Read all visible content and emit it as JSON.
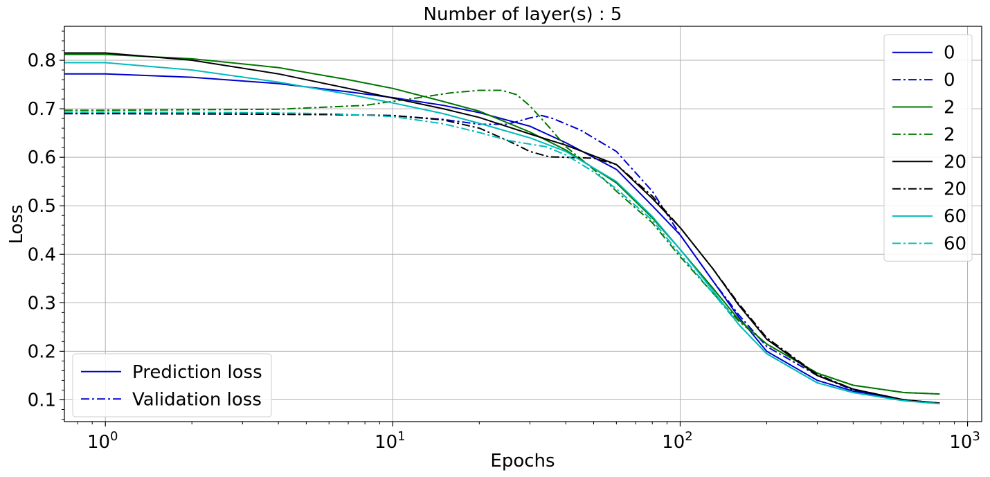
{
  "chart_data": {
    "type": "line",
    "title": "Number of layer(s) : 5",
    "xlabel": "Epochs",
    "ylabel": "Loss",
    "xscale": "log",
    "xlim": [
      0.72,
      1120
    ],
    "ylim": [
      0.055,
      0.87
    ],
    "grid": true,
    "x_ticks": [
      {
        "value": 1,
        "base": "10",
        "exp": "0"
      },
      {
        "value": 10,
        "base": "10",
        "exp": "1"
      },
      {
        "value": 100,
        "base": "10",
        "exp": "2"
      },
      {
        "value": 1000,
        "base": "10",
        "exp": "3"
      }
    ],
    "y_ticks": [
      {
        "value": 0.1,
        "label": "0.1"
      },
      {
        "value": 0.2,
        "label": "0.2"
      },
      {
        "value": 0.3,
        "label": "0.3"
      },
      {
        "value": 0.4,
        "label": "0.4"
      },
      {
        "value": 0.5,
        "label": "0.5"
      },
      {
        "value": 0.6,
        "label": "0.6"
      },
      {
        "value": 0.7,
        "label": "0.7"
      },
      {
        "value": 0.8,
        "label": "0.8"
      }
    ],
    "colors": {
      "0": "#0000cc",
      "2": "#007700",
      "20": "#000000",
      "60": "#00bbbb"
    },
    "series": [
      {
        "name": "0",
        "kind": "prediction",
        "color": "#0000cc",
        "points": [
          [
            0.72,
            0.772
          ],
          [
            1,
            0.772
          ],
          [
            2,
            0.765
          ],
          [
            4,
            0.752
          ],
          [
            7,
            0.735
          ],
          [
            10,
            0.723
          ],
          [
            15,
            0.707
          ],
          [
            20,
            0.692
          ],
          [
            30,
            0.664
          ],
          [
            40,
            0.63
          ],
          [
            60,
            0.575
          ],
          [
            80,
            0.5
          ],
          [
            100,
            0.44
          ],
          [
            130,
            0.345
          ],
          [
            160,
            0.27
          ],
          [
            200,
            0.2
          ],
          [
            300,
            0.14
          ],
          [
            400,
            0.118
          ],
          [
            600,
            0.1
          ],
          [
            800,
            0.093
          ]
        ]
      },
      {
        "name": "0",
        "kind": "validation",
        "color": "#0000cc",
        "points": [
          [
            0.72,
            0.69
          ],
          [
            1,
            0.69
          ],
          [
            3,
            0.689
          ],
          [
            6,
            0.688
          ],
          [
            10,
            0.686
          ],
          [
            15,
            0.678
          ],
          [
            20,
            0.668
          ],
          [
            25,
            0.668
          ],
          [
            30,
            0.681
          ],
          [
            33,
            0.686
          ],
          [
            36,
            0.68
          ],
          [
            45,
            0.656
          ],
          [
            60,
            0.612
          ],
          [
            80,
            0.53
          ],
          [
            100,
            0.44
          ],
          [
            130,
            0.345
          ],
          [
            160,
            0.275
          ],
          [
            200,
            0.21
          ],
          [
            300,
            0.15
          ],
          [
            400,
            0.12
          ],
          [
            600,
            0.1
          ],
          [
            800,
            0.093
          ]
        ]
      },
      {
        "name": "2",
        "kind": "prediction",
        "color": "#007700",
        "points": [
          [
            0.72,
            0.812
          ],
          [
            1,
            0.812
          ],
          [
            2,
            0.803
          ],
          [
            4,
            0.785
          ],
          [
            7,
            0.76
          ],
          [
            10,
            0.742
          ],
          [
            15,
            0.715
          ],
          [
            20,
            0.695
          ],
          [
            30,
            0.652
          ],
          [
            40,
            0.615
          ],
          [
            60,
            0.547
          ],
          [
            80,
            0.475
          ],
          [
            100,
            0.41
          ],
          [
            130,
            0.33
          ],
          [
            160,
            0.265
          ],
          [
            200,
            0.215
          ],
          [
            300,
            0.155
          ],
          [
            400,
            0.13
          ],
          [
            600,
            0.115
          ],
          [
            800,
            0.112
          ]
        ]
      },
      {
        "name": "2",
        "kind": "validation",
        "color": "#007700",
        "points": [
          [
            0.72,
            0.697
          ],
          [
            1,
            0.697
          ],
          [
            4,
            0.699
          ],
          [
            8,
            0.707
          ],
          [
            12,
            0.722
          ],
          [
            16,
            0.733
          ],
          [
            20,
            0.738
          ],
          [
            24,
            0.738
          ],
          [
            27,
            0.729
          ],
          [
            30,
            0.706
          ],
          [
            35,
            0.662
          ],
          [
            40,
            0.622
          ],
          [
            50,
            0.575
          ],
          [
            60,
            0.53
          ],
          [
            80,
            0.465
          ],
          [
            100,
            0.395
          ],
          [
            130,
            0.32
          ],
          [
            160,
            0.262
          ],
          [
            200,
            0.215
          ],
          [
            300,
            0.155
          ],
          [
            400,
            0.13
          ],
          [
            600,
            0.115
          ],
          [
            800,
            0.112
          ]
        ]
      },
      {
        "name": "20",
        "kind": "prediction",
        "color": "#000000",
        "points": [
          [
            0.72,
            0.815
          ],
          [
            1,
            0.815
          ],
          [
            2,
            0.8
          ],
          [
            4,
            0.772
          ],
          [
            7,
            0.742
          ],
          [
            10,
            0.722
          ],
          [
            15,
            0.7
          ],
          [
            20,
            0.682
          ],
          [
            30,
            0.648
          ],
          [
            40,
            0.625
          ],
          [
            60,
            0.585
          ],
          [
            80,
            0.515
          ],
          [
            100,
            0.455
          ],
          [
            130,
            0.37
          ],
          [
            160,
            0.295
          ],
          [
            200,
            0.225
          ],
          [
            300,
            0.15
          ],
          [
            400,
            0.122
          ],
          [
            600,
            0.1
          ],
          [
            800,
            0.093
          ]
        ]
      },
      {
        "name": "20",
        "kind": "validation",
        "color": "#000000",
        "points": [
          [
            0.72,
            0.69
          ],
          [
            1,
            0.69
          ],
          [
            3,
            0.689
          ],
          [
            6,
            0.688
          ],
          [
            10,
            0.686
          ],
          [
            15,
            0.677
          ],
          [
            20,
            0.66
          ],
          [
            25,
            0.635
          ],
          [
            30,
            0.612
          ],
          [
            35,
            0.601
          ],
          [
            40,
            0.6
          ],
          [
            50,
            0.598
          ],
          [
            60,
            0.585
          ],
          [
            80,
            0.52
          ],
          [
            100,
            0.455
          ],
          [
            130,
            0.37
          ],
          [
            160,
            0.298
          ],
          [
            200,
            0.228
          ],
          [
            300,
            0.152
          ],
          [
            400,
            0.122
          ],
          [
            600,
            0.1
          ],
          [
            800,
            0.093
          ]
        ]
      },
      {
        "name": "60",
        "kind": "prediction",
        "color": "#00bbbb",
        "points": [
          [
            0.72,
            0.795
          ],
          [
            1,
            0.795
          ],
          [
            2,
            0.78
          ],
          [
            4,
            0.755
          ],
          [
            7,
            0.73
          ],
          [
            10,
            0.712
          ],
          [
            15,
            0.69
          ],
          [
            20,
            0.67
          ],
          [
            30,
            0.64
          ],
          [
            40,
            0.612
          ],
          [
            60,
            0.55
          ],
          [
            80,
            0.478
          ],
          [
            100,
            0.41
          ],
          [
            130,
            0.325
          ],
          [
            160,
            0.255
          ],
          [
            200,
            0.195
          ],
          [
            300,
            0.135
          ],
          [
            400,
            0.115
          ],
          [
            600,
            0.098
          ],
          [
            800,
            0.092
          ]
        ]
      },
      {
        "name": "60",
        "kind": "validation",
        "color": "#00bbbb",
        "points": [
          [
            0.72,
            0.693
          ],
          [
            1,
            0.693
          ],
          [
            3,
            0.692
          ],
          [
            6,
            0.69
          ],
          [
            10,
            0.684
          ],
          [
            15,
            0.669
          ],
          [
            20,
            0.651
          ],
          [
            25,
            0.635
          ],
          [
            30,
            0.627
          ],
          [
            34,
            0.622
          ],
          [
            40,
            0.605
          ],
          [
            50,
            0.57
          ],
          [
            60,
            0.535
          ],
          [
            80,
            0.47
          ],
          [
            100,
            0.4
          ],
          [
            130,
            0.32
          ],
          [
            160,
            0.255
          ],
          [
            200,
            0.195
          ],
          [
            300,
            0.135
          ],
          [
            400,
            0.115
          ],
          [
            600,
            0.098
          ],
          [
            800,
            0.092
          ]
        ]
      }
    ],
    "legend_right": {
      "placement": "upper-right",
      "entries": [
        {
          "label": "0",
          "color": "#0000cc",
          "style": "solid"
        },
        {
          "label": "0",
          "color": "#0000cc",
          "style": "dashdot"
        },
        {
          "label": "2",
          "color": "#007700",
          "style": "solid"
        },
        {
          "label": "2",
          "color": "#007700",
          "style": "dashdot"
        },
        {
          "label": "20",
          "color": "#000000",
          "style": "solid"
        },
        {
          "label": "20",
          "color": "#000000",
          "style": "dashdot"
        },
        {
          "label": "60",
          "color": "#00bbbb",
          "style": "solid"
        },
        {
          "label": "60",
          "color": "#00bbbb",
          "style": "dashdot"
        }
      ]
    },
    "legend_left": {
      "placement": "lower-left",
      "entries": [
        {
          "label": "Prediction loss",
          "color": "#0000cc",
          "style": "solid"
        },
        {
          "label": "Validation loss",
          "color": "#0000cc",
          "style": "dashdot"
        }
      ]
    }
  }
}
